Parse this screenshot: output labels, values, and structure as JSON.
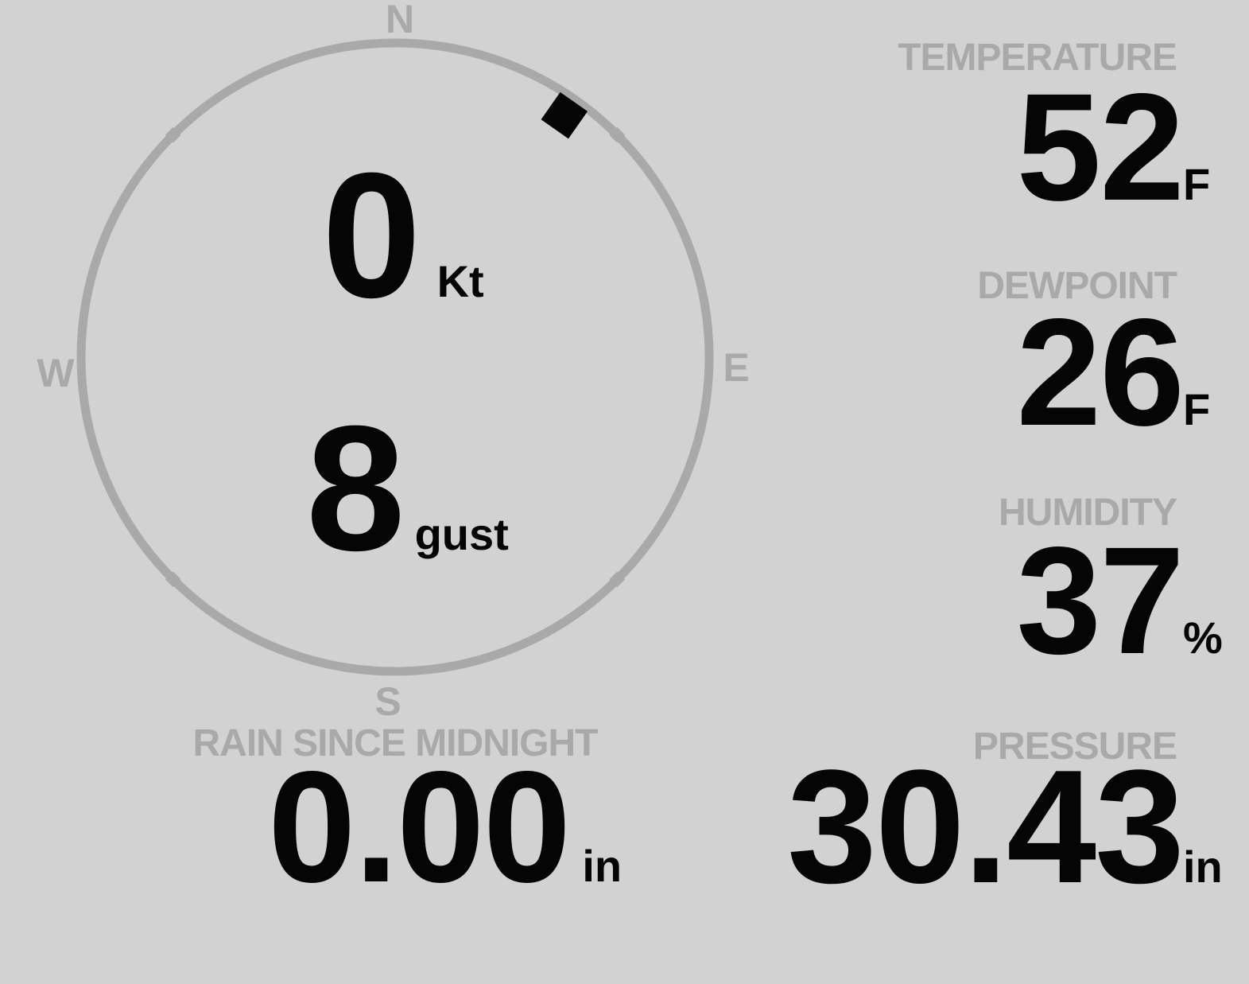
{
  "colors": {
    "background": "#d2d2d2",
    "muted": "#a9a9a9",
    "ink": "#050505"
  },
  "wind": {
    "direction_degrees": 35,
    "speed": {
      "value": "0",
      "unit": "Kt"
    },
    "gust": {
      "value": "8",
      "unit": "gust"
    },
    "compass": {
      "n": "N",
      "e": "E",
      "s": "S",
      "w": "W"
    }
  },
  "metrics": {
    "temperature": {
      "label": "TEMPERATURE",
      "value": "52",
      "unit": "F"
    },
    "dewpoint": {
      "label": "DEWPOINT",
      "value": "26",
      "unit": "F"
    },
    "humidity": {
      "label": "HUMIDITY",
      "value": "37",
      "unit": "%"
    },
    "rain": {
      "label": "RAIN SINCE MIDNIGHT",
      "value": "0.00",
      "unit": "in"
    },
    "pressure": {
      "label": "PRESSURE",
      "value": "30.43",
      "unit": "in"
    }
  }
}
